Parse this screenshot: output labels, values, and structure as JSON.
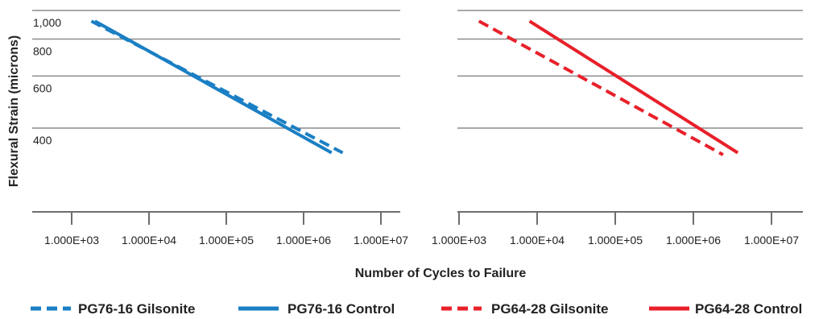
{
  "chart_data": [
    {
      "type": "line",
      "log_x": true,
      "xlim": [
        1000,
        10000000
      ],
      "ylim": [
        200,
        1000
      ],
      "y_ticks": [
        {
          "value": 1000,
          "label": "1,000"
        },
        {
          "value": 800,
          "label": "800"
        },
        {
          "value": 600,
          "label": "600"
        },
        {
          "value": 400,
          "label": "400"
        }
      ],
      "x_ticks": [
        {
          "value": 1000,
          "label": "1.000E+03"
        },
        {
          "value": 10000,
          "label": "1.000E+04"
        },
        {
          "value": 100000,
          "label": "1.000E+05"
        },
        {
          "value": 1000000,
          "label": "1.000E+06"
        },
        {
          "value": 10000000,
          "label": "1.000E+07"
        }
      ],
      "grid": true,
      "series": [
        {
          "name": "PG76-16 Gilsonite",
          "style": "dashed",
          "color": "#1a7fc4",
          "x": [
            1800,
            3200000
          ],
          "y": [
            920,
            330
          ]
        },
        {
          "name": "PG76-16 Control",
          "style": "solid",
          "color": "#1a7fc4",
          "x": [
            2000,
            2300000
          ],
          "y": [
            920,
            330
          ]
        }
      ]
    },
    {
      "type": "line",
      "log_x": true,
      "xlim": [
        1000,
        10000000
      ],
      "ylim": [
        200,
        1000
      ],
      "y_ticks": [
        {
          "value": 1000,
          "label": ""
        },
        {
          "value": 800,
          "label": ""
        },
        {
          "value": 600,
          "label": ""
        },
        {
          "value": 400,
          "label": ""
        }
      ],
      "x_ticks": [
        {
          "value": 1000,
          "label": "1.000E+03"
        },
        {
          "value": 10000,
          "label": "1.000E+04"
        },
        {
          "value": 100000,
          "label": "1.000E+05"
        },
        {
          "value": 1000000,
          "label": "1.000E+06"
        },
        {
          "value": 10000000,
          "label": "1.000E+07"
        }
      ],
      "grid": true,
      "series": [
        {
          "name": "PG64-28 Gilsonite",
          "style": "dashed",
          "color": "#e8202a",
          "x": [
            1800,
            2400000
          ],
          "y": [
            920,
            325
          ]
        },
        {
          "name": "PG64-28 Control",
          "style": "solid",
          "color": "#e8202a",
          "x": [
            8000,
            3700000
          ],
          "y": [
            920,
            330
          ]
        }
      ]
    }
  ],
  "labels": {
    "ylabel": "Flexural Strain (microns)",
    "xlabel": "Number of Cycles to Failure"
  },
  "legend": [
    {
      "label": "PG76-16 Gilsonite",
      "style": "dashed",
      "color": "#1a7fc4"
    },
    {
      "label": "PG76-16 Control",
      "style": "solid",
      "color": "#1a7fc4"
    },
    {
      "label": "PG64-28 Gilsonite",
      "style": "dashed",
      "color": "#e8202a"
    },
    {
      "label": "PG64-28 Control",
      "style": "solid",
      "color": "#e8202a"
    }
  ]
}
